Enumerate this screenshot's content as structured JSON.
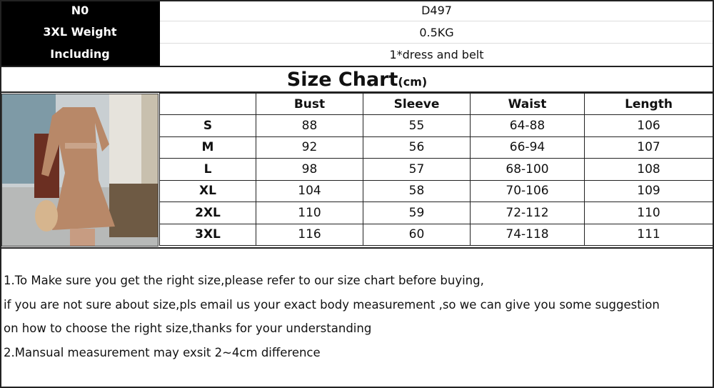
{
  "info": [
    {
      "label": "N0",
      "value": "D497"
    },
    {
      "label": "3XL Weight",
      "value": "0.5KG"
    },
    {
      "label": "Including",
      "value": "1*dress and belt"
    }
  ],
  "title": "Size Chart",
  "title_unit": "(cm)",
  "table": {
    "headers": [
      "",
      "Bust",
      "Sleeve",
      "Waist",
      "Length"
    ],
    "rows": [
      [
        "S",
        "88",
        "55",
        "64-88",
        "106"
      ],
      [
        "M",
        "92",
        "56",
        "66-94",
        "107"
      ],
      [
        "L",
        "98",
        "57",
        "68-100",
        "108"
      ],
      [
        "XL",
        "104",
        "58",
        "70-106",
        "109"
      ],
      [
        "2XL",
        "110",
        "59",
        "72-112",
        "110"
      ],
      [
        "3XL",
        "116",
        "60",
        "74-118",
        "111"
      ]
    ]
  },
  "notes": [
    "1.To Make sure you get the right size,please refer to our size chart before buying,",
    "if you are not sure about size,pls email us your exact body measurement ,so we can give you some suggestion",
    "on how to choose the right size,thanks for your understanding",
    "2.Mansual measurement may exsit 2~4cm difference"
  ]
}
